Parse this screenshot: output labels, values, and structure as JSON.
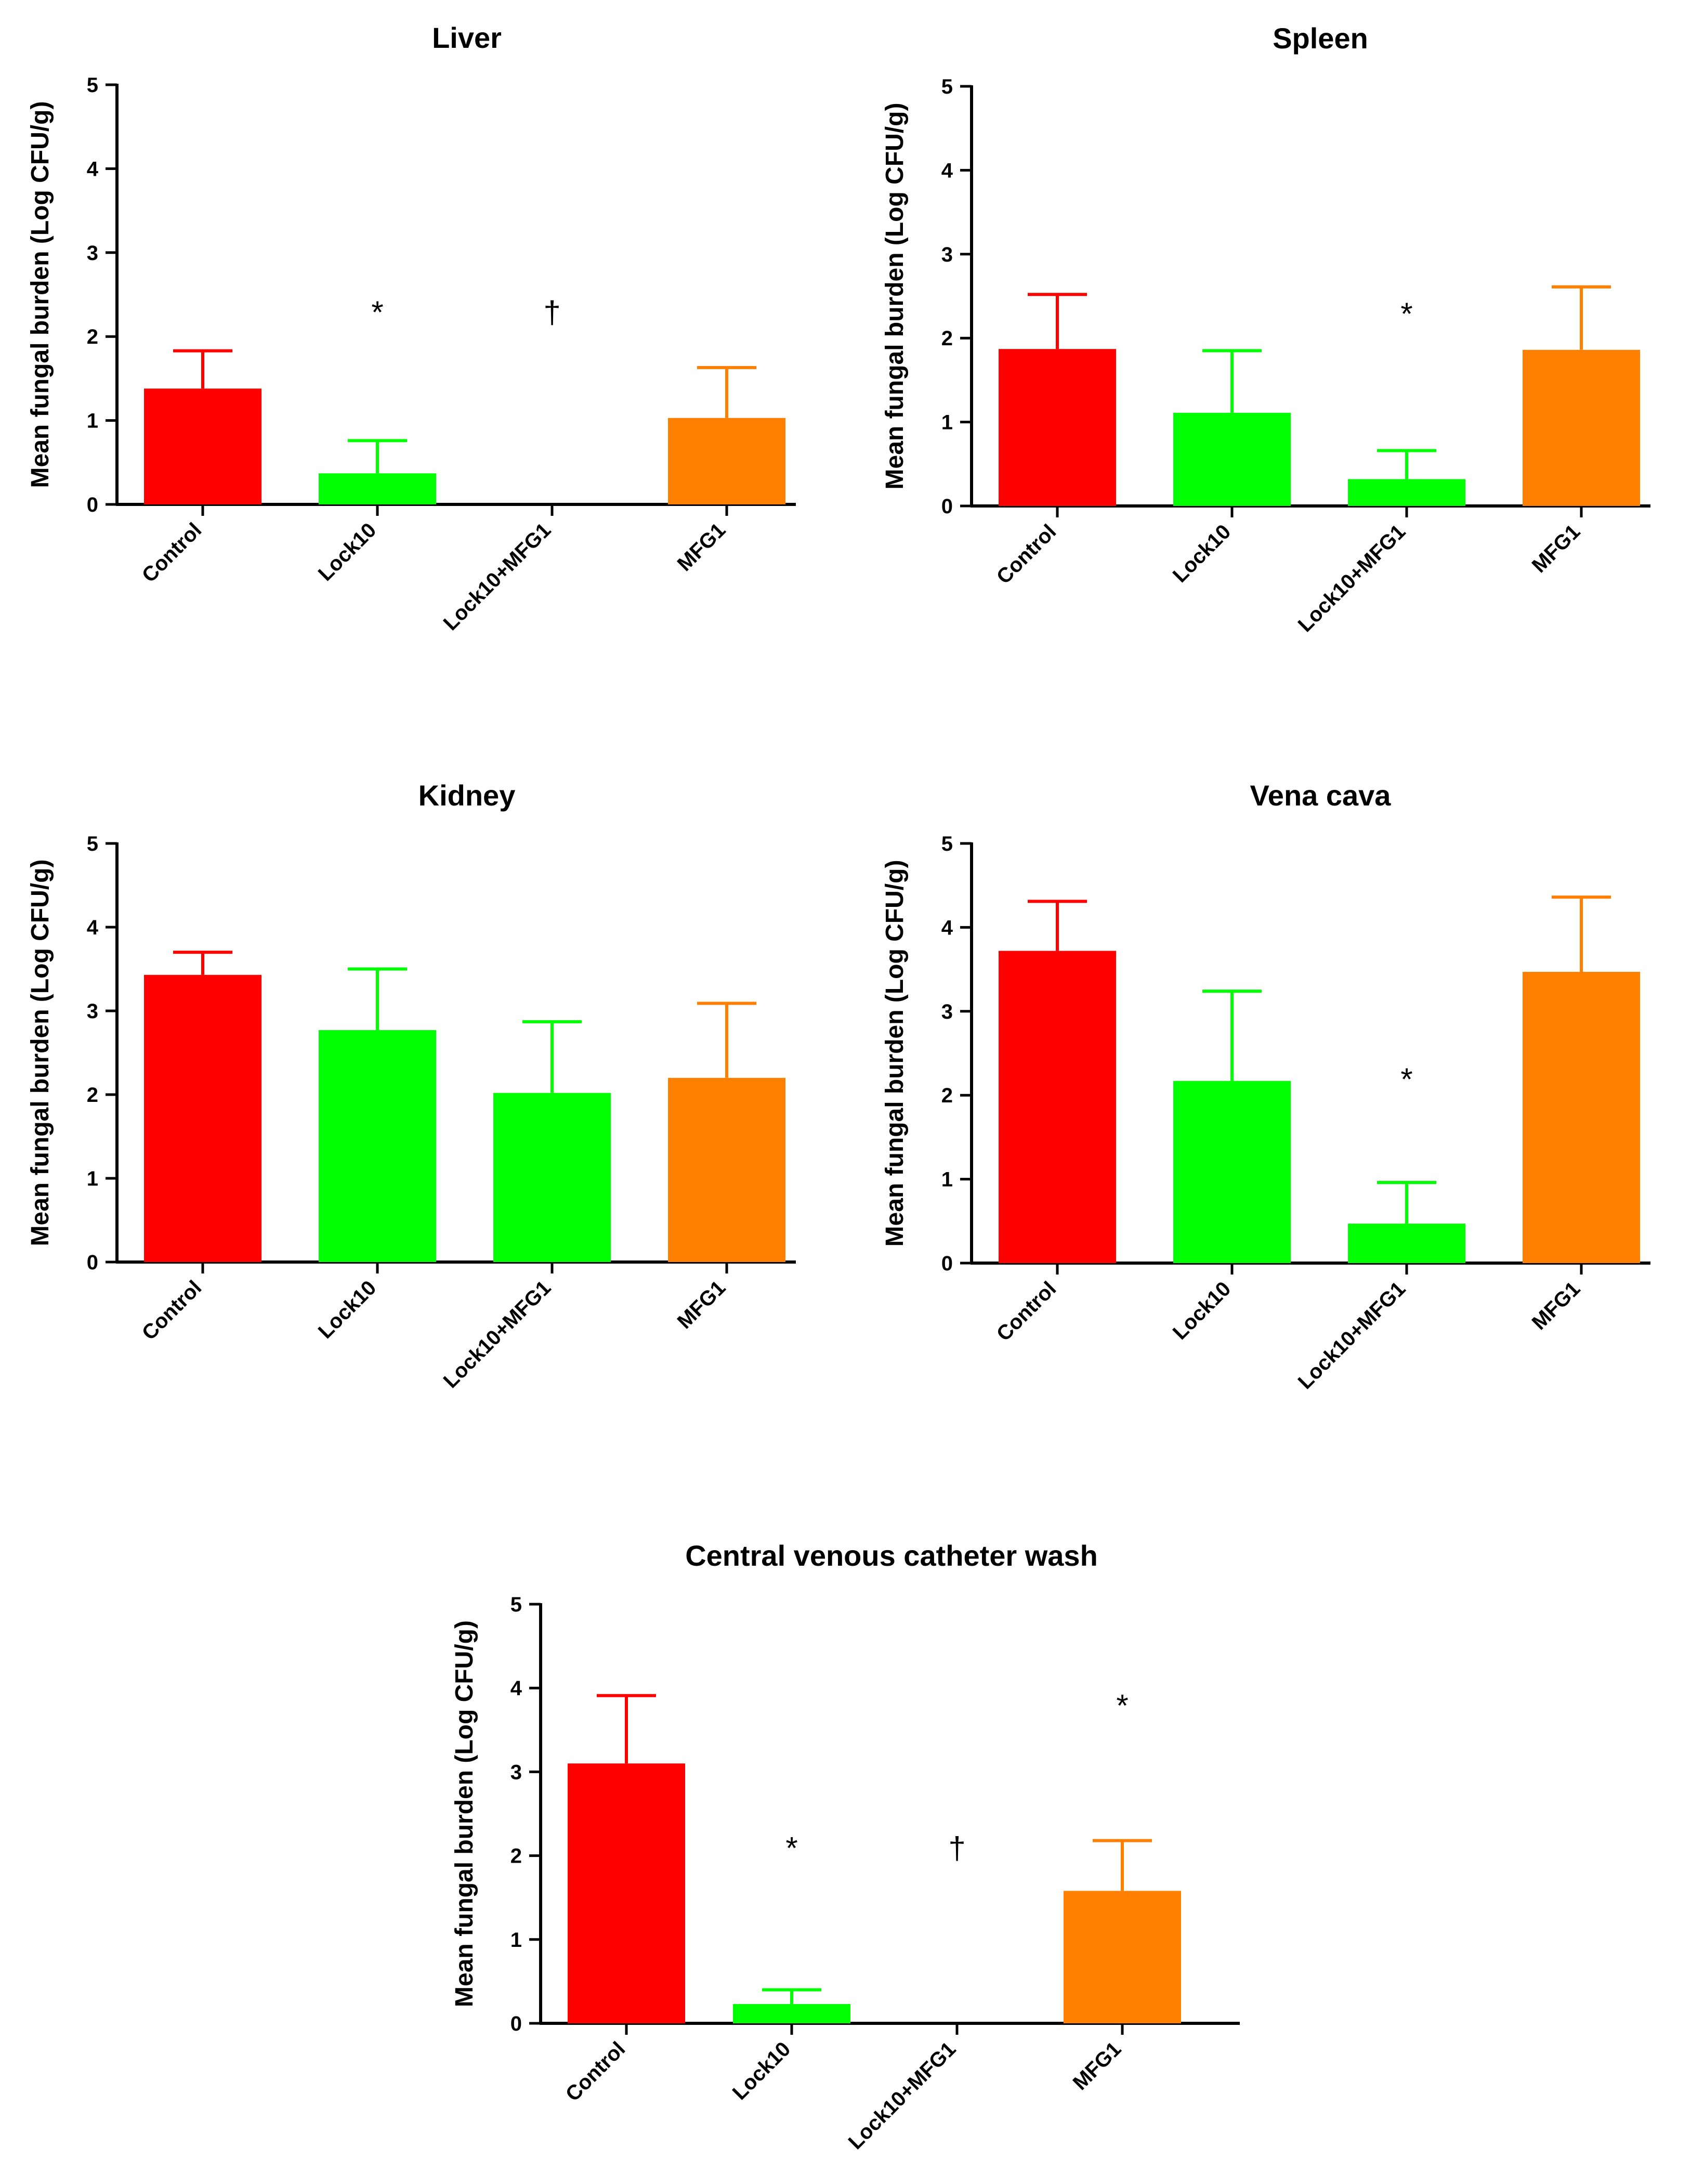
{
  "colors": {
    "Control": "#ff0000",
    "Lock10": "#00ff00",
    "Lock10+MFG1": "#00ff00",
    "MFG1": "#ff8000"
  },
  "chart_data": [
    {
      "type": "bar",
      "title": "Liver",
      "ylabel": "Mean fungal burden (Log CFU/g)",
      "xlabel": "",
      "ylim": [
        0,
        5
      ],
      "yticks": [
        "0",
        "1",
        "2",
        "3",
        "4",
        "5"
      ],
      "categories": [
        "Control",
        "Lock10",
        "Lock10+MFG1",
        "MFG1"
      ],
      "values": [
        1.38,
        0.37,
        0,
        1.03
      ],
      "errors": [
        0.45,
        0.39,
        0,
        0.6
      ],
      "annotations": [
        "",
        "*",
        "†",
        ""
      ],
      "annotation_y": [
        null,
        2.3,
        2.3,
        null
      ]
    },
    {
      "type": "bar",
      "title": "Spleen",
      "ylabel": "Mean fungal burden (Log CFU/g)",
      "xlabel": "",
      "ylim": [
        0,
        5
      ],
      "yticks": [
        "0",
        "1",
        "2",
        "3",
        "4",
        "5"
      ],
      "categories": [
        "Control",
        "Lock10",
        "Lock10+MFG1",
        "MFG1"
      ],
      "values": [
        1.87,
        1.11,
        0.32,
        1.86
      ],
      "errors": [
        0.65,
        0.74,
        0.34,
        0.75
      ],
      "annotations": [
        "",
        "",
        "*",
        ""
      ],
      "annotation_y": [
        null,
        null,
        2.3,
        null
      ]
    },
    {
      "type": "bar",
      "title": "Kidney",
      "ylabel": "Mean fungal burden (Log CFU/g)",
      "xlabel": "",
      "ylim": [
        0,
        5
      ],
      "yticks": [
        "0",
        "1",
        "2",
        "3",
        "4",
        "5"
      ],
      "categories": [
        "Control",
        "Lock10",
        "Lock10+MFG1",
        "MFG1"
      ],
      "values": [
        3.43,
        2.77,
        2.02,
        2.2
      ],
      "errors": [
        0.27,
        0.73,
        0.85,
        0.89
      ],
      "annotations": [
        "",
        "",
        "",
        ""
      ],
      "annotation_y": [
        null,
        null,
        null,
        null
      ]
    },
    {
      "type": "bar",
      "title": "Vena cava",
      "ylabel": "Mean fungal burden (Log CFU/g)",
      "xlabel": "",
      "ylim": [
        0,
        5
      ],
      "yticks": [
        "0",
        "1",
        "2",
        "3",
        "4",
        "5"
      ],
      "categories": [
        "Control",
        "Lock10",
        "Lock10+MFG1",
        "MFG1"
      ],
      "values": [
        3.72,
        2.17,
        0.47,
        3.47
      ],
      "errors": [
        0.59,
        1.07,
        0.49,
        0.89
      ],
      "annotations": [
        "",
        "",
        "*",
        ""
      ],
      "annotation_y": [
        null,
        null,
        2.2,
        null
      ]
    },
    {
      "type": "bar",
      "title": "Central venous catheter wash",
      "ylabel": "Mean fungal burden (Log CFU/g)",
      "xlabel": "",
      "ylim": [
        0,
        5
      ],
      "yticks": [
        "0",
        "1",
        "2",
        "3",
        "4",
        "5"
      ],
      "categories": [
        "Control",
        "Lock10",
        "Lock10+MFG1",
        "MFG1"
      ],
      "values": [
        3.1,
        0.23,
        0,
        1.58
      ],
      "errors": [
        0.81,
        0.17,
        0,
        0.6
      ],
      "annotations": [
        "",
        "*",
        "†",
        "*"
      ],
      "annotation_y": [
        null,
        2.1,
        2.1,
        3.8
      ]
    }
  ]
}
